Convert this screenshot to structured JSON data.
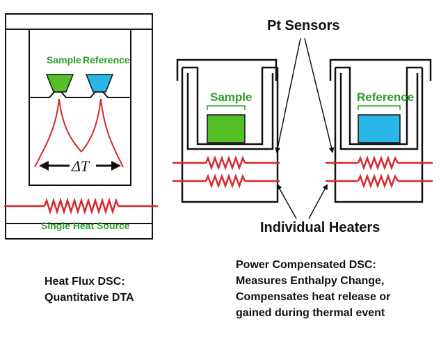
{
  "heat_flux": {
    "sample_label": "Sample",
    "reference_label": "Reference",
    "delta_label": "ΔT",
    "source_label": "Single Heat Source",
    "caption_line1": "Heat Flux DSC:",
    "caption_line2": "Quantitative DTA"
  },
  "power_compensated": {
    "sensors_label": "Pt Sensors",
    "sample_label": "Sample",
    "reference_label": "Reference",
    "heaters_label": "Individual Heaters",
    "caption_lines": [
      "Power Compensated DSC:",
      "Measures Enthalpy Change,",
      "Compensates heat release or",
      "gained during thermal event"
    ]
  },
  "colors": {
    "outline": "#111111",
    "heater": "#d9262c",
    "sample_fill": "#56c02b",
    "reference_fill": "#29b6e8",
    "label_green": "#2a9d2a"
  }
}
